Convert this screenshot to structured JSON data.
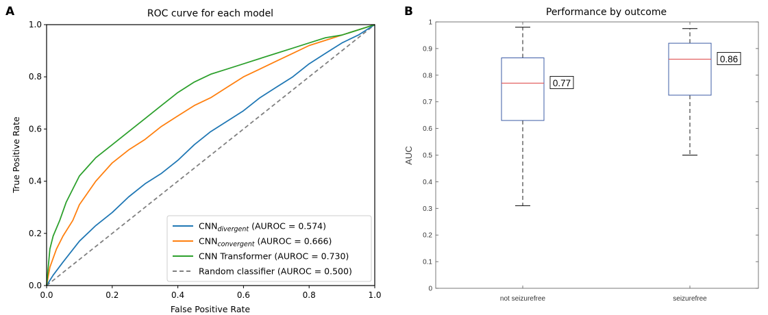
{
  "panels": {
    "a": {
      "letter": "A"
    },
    "b": {
      "letter": "B"
    }
  },
  "chart_data": [
    {
      "type": "line",
      "title": "ROC curve for each model",
      "xlabel": "False Positive Rate",
      "ylabel": "True Positive Rate",
      "xlim": [
        0.0,
        1.0
      ],
      "ylim": [
        0.0,
        1.0
      ],
      "xticks": [
        "0.0",
        "0.2",
        "0.4",
        "0.6",
        "0.8",
        "1.0"
      ],
      "yticks": [
        "0.0",
        "0.2",
        "0.4",
        "0.6",
        "0.8",
        "1.0"
      ],
      "grid": false,
      "legend_position": "lower-right",
      "series": [
        {
          "legend_base": "CNN",
          "legend_sub": "divergent",
          "legend_suffix": " (AUROC = 0.574)",
          "color": "#1f77b4",
          "style": "solid",
          "x": [
            0,
            0.02,
            0.05,
            0.1,
            0.15,
            0.2,
            0.25,
            0.3,
            0.35,
            0.4,
            0.45,
            0.5,
            0.55,
            0.6,
            0.65,
            0.7,
            0.75,
            0.8,
            0.85,
            0.9,
            0.95,
            1.0
          ],
          "y": [
            0,
            0.04,
            0.09,
            0.17,
            0.23,
            0.28,
            0.34,
            0.39,
            0.43,
            0.48,
            0.54,
            0.59,
            0.63,
            0.67,
            0.72,
            0.76,
            0.8,
            0.85,
            0.89,
            0.93,
            0.96,
            1.0
          ]
        },
        {
          "legend_base": "CNN",
          "legend_sub": "convergent",
          "legend_suffix": " (AUROC = 0.666)",
          "color": "#ff7f0e",
          "style": "solid",
          "x": [
            0,
            0.01,
            0.03,
            0.05,
            0.08,
            0.1,
            0.15,
            0.2,
            0.25,
            0.3,
            0.35,
            0.4,
            0.45,
            0.5,
            0.55,
            0.6,
            0.65,
            0.7,
            0.75,
            0.8,
            0.85,
            0.9,
            0.95,
            1.0
          ],
          "y": [
            0,
            0.07,
            0.14,
            0.19,
            0.25,
            0.31,
            0.4,
            0.47,
            0.52,
            0.56,
            0.61,
            0.65,
            0.69,
            0.72,
            0.76,
            0.8,
            0.83,
            0.86,
            0.89,
            0.92,
            0.94,
            0.96,
            0.98,
            1.0
          ]
        },
        {
          "legend_base": "CNN Transformer",
          "legend_sub": "",
          "legend_suffix": " (AUROC = 0.730)",
          "color": "#2ca02c",
          "style": "solid",
          "x": [
            0,
            0.01,
            0.02,
            0.04,
            0.06,
            0.08,
            0.1,
            0.15,
            0.2,
            0.25,
            0.3,
            0.35,
            0.4,
            0.45,
            0.5,
            0.55,
            0.6,
            0.65,
            0.7,
            0.75,
            0.8,
            0.85,
            0.9,
            0.95,
            1.0
          ],
          "y": [
            0,
            0.14,
            0.19,
            0.25,
            0.32,
            0.37,
            0.42,
            0.49,
            0.54,
            0.59,
            0.64,
            0.69,
            0.74,
            0.78,
            0.81,
            0.83,
            0.85,
            0.87,
            0.89,
            0.91,
            0.93,
            0.95,
            0.96,
            0.98,
            1.0
          ]
        },
        {
          "legend_base": "Random classifier",
          "legend_sub": "",
          "legend_suffix": " (AUROC = 0.500)",
          "color": "#7f7f7f",
          "style": "dashed",
          "x": [
            0,
            1
          ],
          "y": [
            0,
            1
          ]
        }
      ]
    },
    {
      "type": "box",
      "title": "Performance by outcome",
      "ylabel": "AUC",
      "ylim": [
        0,
        1
      ],
      "yticks": [
        "0",
        "0.1",
        "0.2",
        "0.3",
        "0.4",
        "0.5",
        "0.6",
        "0.7",
        "0.8",
        "0.9",
        "1"
      ],
      "categories": [
        "not seizurefree",
        "seizurefree"
      ],
      "box_color": "#3b5ba5",
      "median_color": "#e05555",
      "boxes": [
        {
          "label": "not seizurefree",
          "whisker_low": 0.31,
          "q1": 0.63,
          "median": 0.77,
          "q3": 0.865,
          "whisker_high": 0.98,
          "median_label": "0.77"
        },
        {
          "label": "seizurefree",
          "whisker_low": 0.5,
          "q1": 0.725,
          "median": 0.86,
          "q3": 0.92,
          "whisker_high": 0.975,
          "median_label": "0.86"
        }
      ]
    }
  ]
}
